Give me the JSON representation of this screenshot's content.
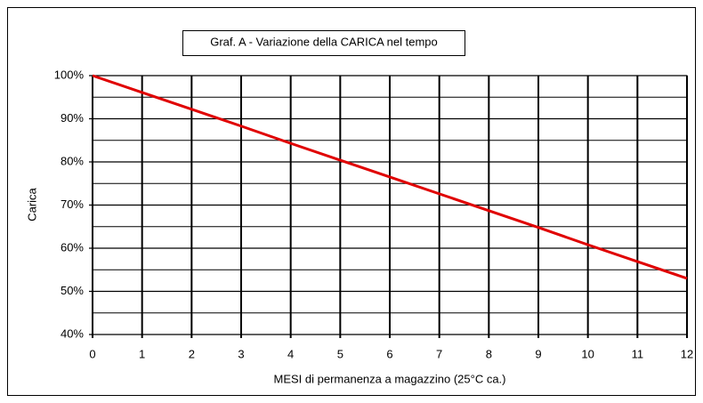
{
  "chart_data": {
    "type": "line",
    "title": "Graf. A - Variazione della CARICA nel tempo",
    "x_label": "MESI di permanenza a magazzino (25°C ca.)",
    "y_label": "Carica",
    "x": [
      0,
      1,
      2,
      3,
      4,
      5,
      6,
      7,
      8,
      9,
      10,
      11,
      12
    ],
    "series": [
      {
        "name": "Carica",
        "color": "#e00000",
        "values": [
          100,
          96.1,
          92.2,
          88.3,
          84.3,
          80.4,
          76.5,
          72.6,
          68.7,
          64.8,
          60.8,
          56.9,
          53
        ]
      }
    ],
    "xlim": [
      0,
      12
    ],
    "xticks": [
      0,
      1,
      2,
      3,
      4,
      5,
      6,
      7,
      8,
      9,
      10,
      11,
      12
    ],
    "ylim": [
      40,
      100
    ],
    "yticks": [
      {
        "value": 40,
        "label": "40%"
      },
      {
        "value": 50,
        "label": "50%"
      },
      {
        "value": 60,
        "label": "60%"
      },
      {
        "value": 70,
        "label": "70%"
      },
      {
        "value": 80,
        "label": "80%"
      },
      {
        "value": 90,
        "label": "90%"
      },
      {
        "value": 100,
        "label": "100%"
      }
    ],
    "yminorticks": [
      45,
      55,
      65,
      75,
      85,
      95
    ],
    "grid": true
  }
}
